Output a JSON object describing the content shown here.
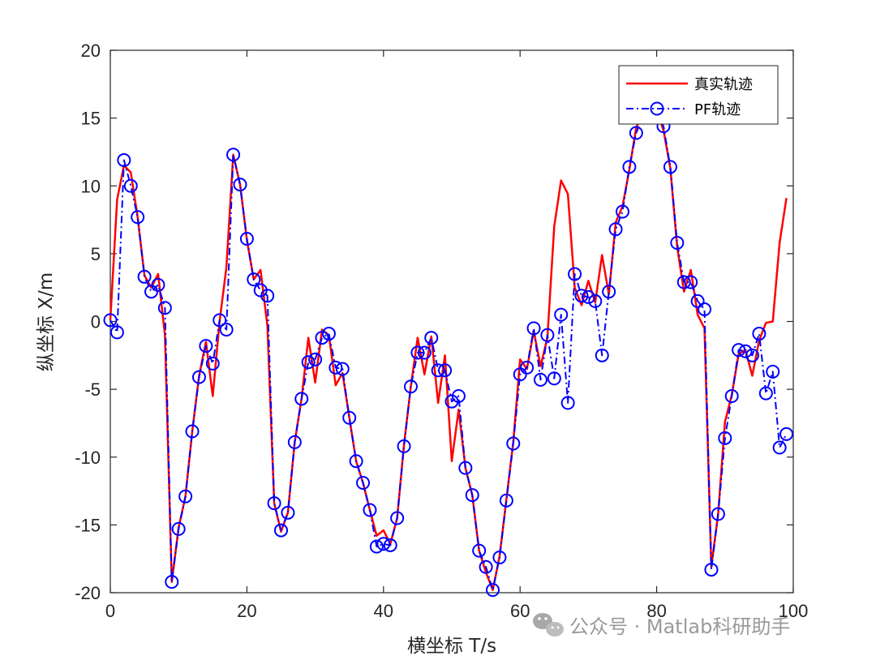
{
  "chart_data": {
    "type": "line",
    "title": "",
    "xlabel": "横坐标 T/s",
    "ylabel": "纵坐标 X/m",
    "xlim": [
      0,
      100
    ],
    "ylim": [
      -20,
      20
    ],
    "xticks": [
      0,
      20,
      40,
      60,
      80,
      100
    ],
    "yticks": [
      -20,
      -15,
      -10,
      -5,
      0,
      5,
      10,
      15,
      20
    ],
    "xtick_labels": [
      "0",
      "20",
      "40",
      "60",
      "80",
      "100"
    ],
    "ytick_labels": [
      "-20",
      "-15",
      "-10",
      "-5",
      "0",
      "5",
      "10",
      "15",
      "20"
    ],
    "grid": false,
    "legend_position": "top-right",
    "x": [
      0,
      1,
      2,
      3,
      4,
      5,
      6,
      7,
      8,
      9,
      10,
      11,
      12,
      13,
      14,
      15,
      16,
      17,
      18,
      19,
      20,
      21,
      22,
      23,
      24,
      25,
      26,
      27,
      28,
      29,
      30,
      31,
      32,
      33,
      34,
      35,
      36,
      37,
      38,
      39,
      40,
      41,
      42,
      43,
      44,
      45,
      46,
      47,
      48,
      49,
      50,
      51,
      52,
      53,
      54,
      55,
      56,
      57,
      58,
      59,
      60,
      61,
      62,
      63,
      64,
      65,
      66,
      67,
      68,
      69,
      70,
      71,
      72,
      73,
      74,
      75,
      76,
      77,
      78,
      79,
      80,
      81,
      82,
      83,
      84,
      85,
      86,
      87,
      88,
      89,
      90,
      91,
      92,
      93,
      94,
      95,
      96,
      97,
      98,
      99
    ],
    "series": [
      {
        "name": "真实轨迹",
        "color": "#ff0000",
        "style": "solid",
        "marker": "none",
        "values": [
          0.1,
          9,
          11.5,
          11,
          7.7,
          3.4,
          2.5,
          3.5,
          -1,
          -19.2,
          -15.2,
          -12.9,
          -8.1,
          -4,
          -1.5,
          -5.5,
          0,
          4,
          12.3,
          10.1,
          6,
          3.1,
          3.8,
          -0.3,
          -13.4,
          -15.5,
          -14.1,
          -8.9,
          -5.7,
          -1.2,
          -4.5,
          -0.6,
          -1,
          -4.7,
          -3.8,
          -7.1,
          -10.3,
          -11.9,
          -13.9,
          -15.8,
          -15.4,
          -16.4,
          -14.5,
          -9.1,
          -4.8,
          -1.2,
          -3.9,
          -1.1,
          -6,
          -2.5,
          -10.3,
          -6.5,
          -10.8,
          -12.8,
          -16.9,
          -18.5,
          -19.8,
          -17.3,
          -13.1,
          -8.9,
          -2.8,
          -3.5,
          -0.7,
          -3.3,
          -1.2,
          7,
          10.4,
          9.4,
          2.5,
          1.2,
          3,
          1.4,
          4.9,
          2,
          7.3,
          8.5,
          11.2,
          14.3,
          15.4,
          15.3,
          15.5,
          14.1,
          11.3,
          5.5,
          2.2,
          3.8,
          0.5,
          -0.5,
          -18.1,
          -14.2,
          -7.4,
          -5.4,
          -2.4,
          -2.1,
          -4,
          -1.4,
          -0.1,
          0,
          5.8,
          9.1
        ]
      },
      {
        "name": "PF轨迹",
        "color": "#0000ff",
        "style": "dashdot",
        "marker": "circle",
        "values": [
          0.1,
          -0.8,
          11.9,
          10,
          7.7,
          3.3,
          2.2,
          2.7,
          1,
          -19.2,
          -15.3,
          -12.9,
          -8.1,
          -4.1,
          -1.8,
          -3.1,
          0.1,
          -0.6,
          12.3,
          10.1,
          6.1,
          3.1,
          2.3,
          1.9,
          -13.4,
          -15.4,
          -14.1,
          -8.9,
          -5.7,
          -3,
          -2.8,
          -1.2,
          -0.9,
          -3.4,
          -3.5,
          -7.1,
          -10.3,
          -11.9,
          -13.9,
          -16.6,
          -16.4,
          -16.5,
          -14.5,
          -9.2,
          -4.8,
          -2.3,
          -2.3,
          -1.2,
          -3.6,
          -3.6,
          -5.9,
          -5.5,
          -10.8,
          -12.8,
          -16.9,
          -18.1,
          -19.8,
          -17.4,
          -13.2,
          -9,
          -3.9,
          -3.4,
          -0.5,
          -4.3,
          -1,
          -4.2,
          0.5,
          -6,
          3.5,
          1.9,
          1.8,
          1.5,
          -2.5,
          2.2,
          6.8,
          8.1,
          11.4,
          13.9,
          15.1,
          15.6,
          15.4,
          14.4,
          11.4,
          5.8,
          2.9,
          2.9,
          1.5,
          0.9,
          -18.3,
          -14.2,
          -8.6,
          -5.5,
          -2.1,
          -2.2,
          -2.5,
          -0.9,
          -5.3,
          -3.7,
          -9.3,
          -8.3
        ]
      }
    ]
  },
  "legend": {
    "entry_0": "真实轨迹",
    "entry_1": "PF轨迹"
  },
  "watermark": {
    "text": "公众号 · Matlab科研助手",
    "icon": "wechat-icon"
  }
}
